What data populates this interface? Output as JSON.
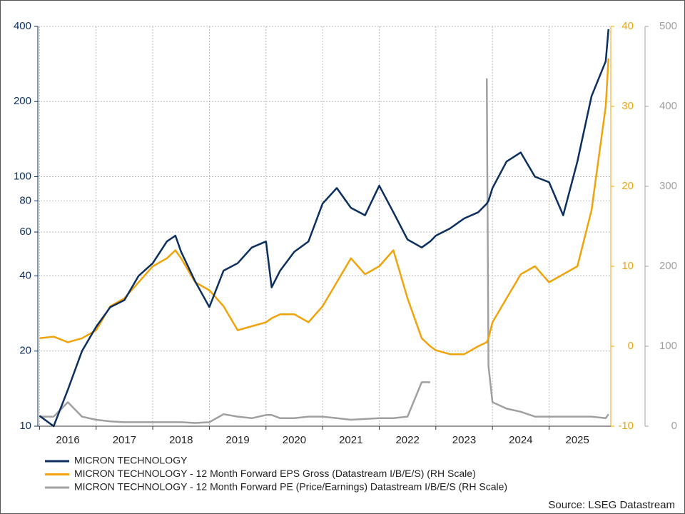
{
  "chart_data": {
    "type": "line",
    "x": [
      2016.0,
      2016.25,
      2016.5,
      2016.75,
      2017.0,
      2017.25,
      2017.5,
      2017.75,
      2018.0,
      2018.25,
      2018.4,
      2018.5,
      2018.75,
      2019.0,
      2019.25,
      2019.5,
      2019.75,
      2020.0,
      2020.1,
      2020.25,
      2020.5,
      2020.75,
      2021.0,
      2021.25,
      2021.5,
      2021.75,
      2022.0,
      2022.25,
      2022.5,
      2022.75,
      2022.9,
      2023.0,
      2023.25,
      2023.5,
      2023.75,
      2023.9,
      2023.93,
      2024.0,
      2024.25,
      2024.5,
      2024.75,
      2025.0,
      2025.25,
      2025.5,
      2025.75,
      2026.0,
      2026.05
    ],
    "series": [
      {
        "name": "MICRON TECHNOLOGY",
        "color": "#0b2f5e",
        "values": [
          11,
          10,
          14,
          20,
          25,
          30,
          32,
          40,
          45,
          55,
          58,
          50,
          38,
          30,
          42,
          45,
          52,
          55,
          36,
          42,
          50,
          55,
          78,
          90,
          75,
          70,
          92,
          72,
          56,
          52,
          55,
          58,
          62,
          68,
          72,
          78,
          80,
          90,
          115,
          125,
          100,
          95,
          70,
          115,
          210,
          290,
          390
        ]
      },
      {
        "name": "MICRON TECHNOLOGY - 12 Month Forward EPS Gross (Datastream I/B/E/S) (RH Scale)",
        "color": "#f0a30a",
        "axis": "y2",
        "values": [
          1,
          1.2,
          0.5,
          1,
          2,
          5,
          6,
          8,
          10,
          11,
          12,
          11,
          8,
          7,
          5,
          2,
          2.5,
          3,
          3.5,
          4,
          4,
          3,
          5,
          8,
          11,
          9,
          10,
          12,
          6,
          1,
          0,
          -0.5,
          -1,
          -1,
          0,
          0.5,
          1,
          3,
          6,
          9,
          10,
          8,
          9,
          10,
          17,
          30,
          36
        ]
      },
      {
        "name": "MICRON TECHNOLOGY - 12 Month Forward PE (Price/Earnings) Datastream I/B/E/S (RH Scale)",
        "color": "#a0a0a0",
        "axis": "y3",
        "values": [
          12,
          12,
          30,
          12,
          8,
          6,
          5,
          5,
          5,
          5,
          5,
          5,
          4,
          5,
          15,
          12,
          10,
          14,
          14,
          10,
          10,
          12,
          12,
          10,
          8,
          9,
          10,
          10,
          12,
          55,
          55,
          null,
          null,
          null,
          null,
          435,
          75,
          30,
          22,
          18,
          12,
          12,
          12,
          12,
          12,
          10,
          15
        ]
      }
    ],
    "xlim": [
      2015.97,
      2026.09
    ],
    "xticks": [
      2016,
      2017,
      2018,
      2019,
      2020,
      2021,
      2022,
      2023,
      2024,
      2025
    ],
    "ylog": true,
    "ylim": [
      10,
      400
    ],
    "yticks": [
      10,
      20,
      40,
      60,
      80,
      100,
      200,
      400
    ],
    "y2lim": [
      -10,
      40
    ],
    "y2ticks": [
      -10,
      0,
      10,
      20,
      30,
      40
    ],
    "y3lim": [
      0,
      500
    ],
    "y3ticks": [
      0,
      100,
      200,
      300,
      400,
      500
    ],
    "grid": true,
    "source": "Source: LSEG Datastream"
  }
}
